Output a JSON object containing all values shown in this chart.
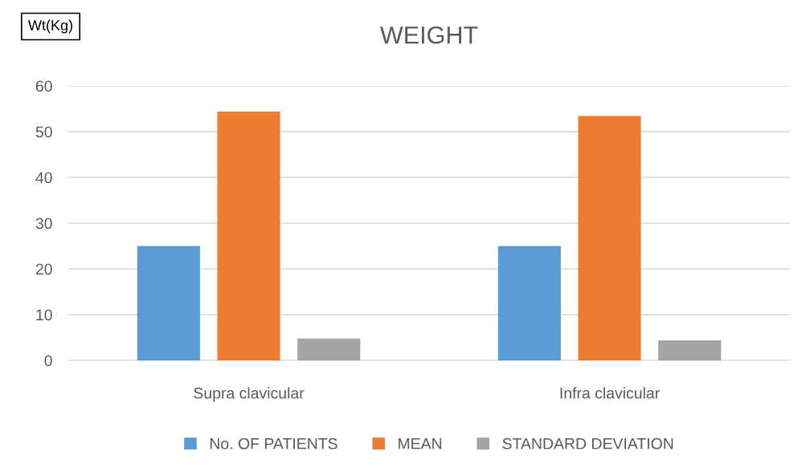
{
  "chart_data": {
    "type": "bar",
    "title": "WEIGHT",
    "ylabel": "Wt(Kg)",
    "categories": [
      "Supra clavicular",
      "Infra clavicular"
    ],
    "series": [
      {
        "name": "No. OF PATIENTS",
        "color": "#5b9bd5",
        "values": [
          25,
          25
        ]
      },
      {
        "name": "MEAN",
        "color": "#ed7d31",
        "values": [
          54.4,
          53.4
        ]
      },
      {
        "name": "STANDARD DEVIATION",
        "color": "#a5a5a5",
        "values": [
          4.8,
          4.4
        ]
      }
    ],
    "ylim": [
      0,
      60
    ],
    "yticks": [
      0,
      10,
      20,
      30,
      40,
      50,
      60
    ],
    "grid": "y",
    "legend": "bottom"
  }
}
